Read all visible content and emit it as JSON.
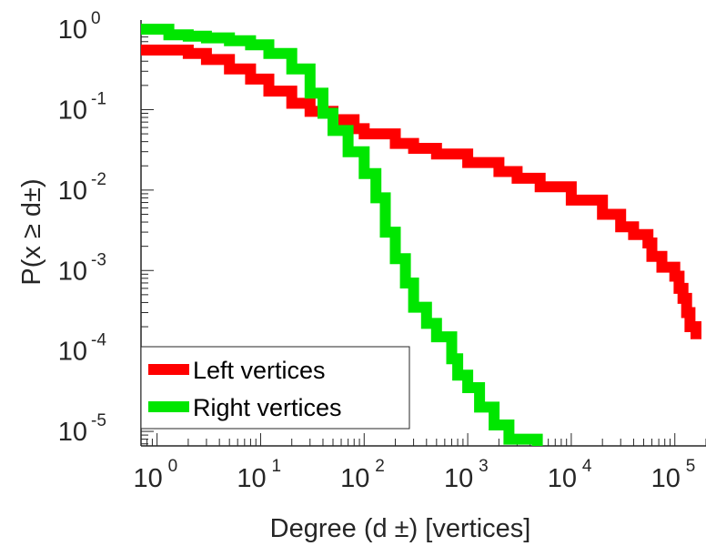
{
  "chart_data": {
    "type": "line",
    "title": "",
    "xlabel": "Degree (d  ±) [vertices]",
    "ylabel": "P(x ≥ d±)",
    "xscale": "log",
    "yscale": "log",
    "xlim": [
      0.7,
      200000
    ],
    "ylim": [
      6.6e-06,
      1.3
    ],
    "grid": false,
    "legend_position": "bottom-left",
    "x_ticks": [
      {
        "base": "10",
        "exp": "0"
      },
      {
        "base": "10",
        "exp": "1"
      },
      {
        "base": "10",
        "exp": "2"
      },
      {
        "base": "10",
        "exp": "3"
      },
      {
        "base": "10",
        "exp": "4"
      },
      {
        "base": "10",
        "exp": "5"
      }
    ],
    "y_ticks": [
      {
        "base": "10",
        "exp": "0"
      },
      {
        "base": "10",
        "exp": "-1"
      },
      {
        "base": "10",
        "exp": "-2"
      },
      {
        "base": "10",
        "exp": "-3"
      },
      {
        "base": "10",
        "exp": "-4"
      },
      {
        "base": "10",
        "exp": "-5"
      }
    ],
    "series": [
      {
        "name": "Left vertices",
        "color": "#ff0000",
        "points": [
          [
            0.7,
            0.55
          ],
          [
            1,
            0.55
          ],
          [
            1.6,
            0.55
          ],
          [
            2,
            0.5
          ],
          [
            3,
            0.42
          ],
          [
            5,
            0.32
          ],
          [
            8,
            0.24
          ],
          [
            12,
            0.17
          ],
          [
            20,
            0.12
          ],
          [
            30,
            0.095
          ],
          [
            50,
            0.075
          ],
          [
            80,
            0.058
          ],
          [
            100,
            0.05
          ],
          [
            200,
            0.038
          ],
          [
            300,
            0.033
          ],
          [
            500,
            0.028
          ],
          [
            1000,
            0.022
          ],
          [
            2000,
            0.017
          ],
          [
            3000,
            0.014
          ],
          [
            5000,
            0.011
          ],
          [
            10000,
            0.0075
          ],
          [
            20000,
            0.005
          ],
          [
            30000,
            0.0035
          ],
          [
            40000,
            0.0028
          ],
          [
            55000,
            0.0022
          ],
          [
            60000,
            0.0015
          ],
          [
            75000,
            0.0011
          ],
          [
            100000,
            0.00085
          ],
          [
            110000,
            0.0006
          ],
          [
            120000,
            0.00045
          ],
          [
            130000,
            0.0003
          ],
          [
            140000,
            0.0002
          ],
          [
            150000,
            0.0002
          ],
          [
            160000,
            0.00014
          ]
        ]
      },
      {
        "name": "Right vertices",
        "color": "#00e600",
        "points": [
          [
            0.7,
            1.0
          ],
          [
            1,
            1.0
          ],
          [
            1.3,
            0.85
          ],
          [
            2,
            0.82
          ],
          [
            3,
            0.78
          ],
          [
            5,
            0.72
          ],
          [
            8,
            0.64
          ],
          [
            12,
            0.5
          ],
          [
            20,
            0.32
          ],
          [
            30,
            0.16
          ],
          [
            40,
            0.09
          ],
          [
            50,
            0.055
          ],
          [
            70,
            0.03
          ],
          [
            100,
            0.016
          ],
          [
            130,
            0.008
          ],
          [
            160,
            0.003
          ],
          [
            200,
            0.0014
          ],
          [
            250,
            0.0007
          ],
          [
            300,
            0.00035
          ],
          [
            400,
            0.00022
          ],
          [
            500,
            0.00015
          ],
          [
            700,
            8e-05
          ],
          [
            800,
            5e-05
          ],
          [
            1000,
            3.5e-05
          ],
          [
            1300,
            2e-05
          ],
          [
            1800,
            1.2e-05
          ],
          [
            2500,
            8e-06
          ],
          [
            4500,
            8e-06
          ],
          [
            4700,
            6.6e-06
          ]
        ]
      }
    ]
  }
}
